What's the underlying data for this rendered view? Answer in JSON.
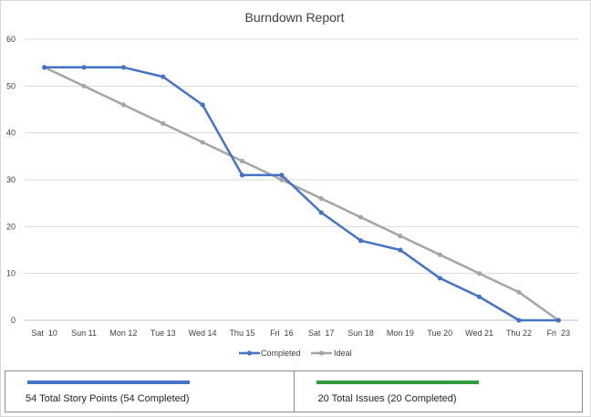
{
  "chart_data": {
    "type": "line",
    "title": "Burndown Report",
    "categories": [
      "Sat  10",
      "Sun 11",
      "Mon 12",
      "Tue 13",
      "Wed 14",
      "Thu 15",
      "Fri  16",
      "Sat  17",
      "Sun 18",
      "Mon 19",
      "Tue 20",
      "Wed 21",
      "Thu 22",
      "Fri  23"
    ],
    "ylim": [
      0,
      60
    ],
    "yticks": [
      0,
      10,
      20,
      30,
      40,
      50,
      60
    ],
    "grid": true,
    "legend_position": "bottom",
    "series": [
      {
        "name": "Completed",
        "color": "#4472c4",
        "values": [
          54,
          54,
          54,
          52,
          46,
          31,
          31,
          23,
          17,
          15,
          9,
          5,
          0,
          0
        ]
      },
      {
        "name": "Ideal",
        "color": "#a5a5a5",
        "values": [
          54,
          50,
          46,
          42,
          38,
          34,
          30,
          26,
          22,
          18,
          14,
          10,
          6,
          0
        ]
      }
    ]
  },
  "summary": {
    "story_points": {
      "text": "54 Total Story Points (54 Completed)",
      "color": "#4472c4",
      "progress": 1.0
    },
    "issues": {
      "text": "20 Total Issues (20 Completed)",
      "color": "#2e9e3f",
      "progress": 1.0
    }
  }
}
